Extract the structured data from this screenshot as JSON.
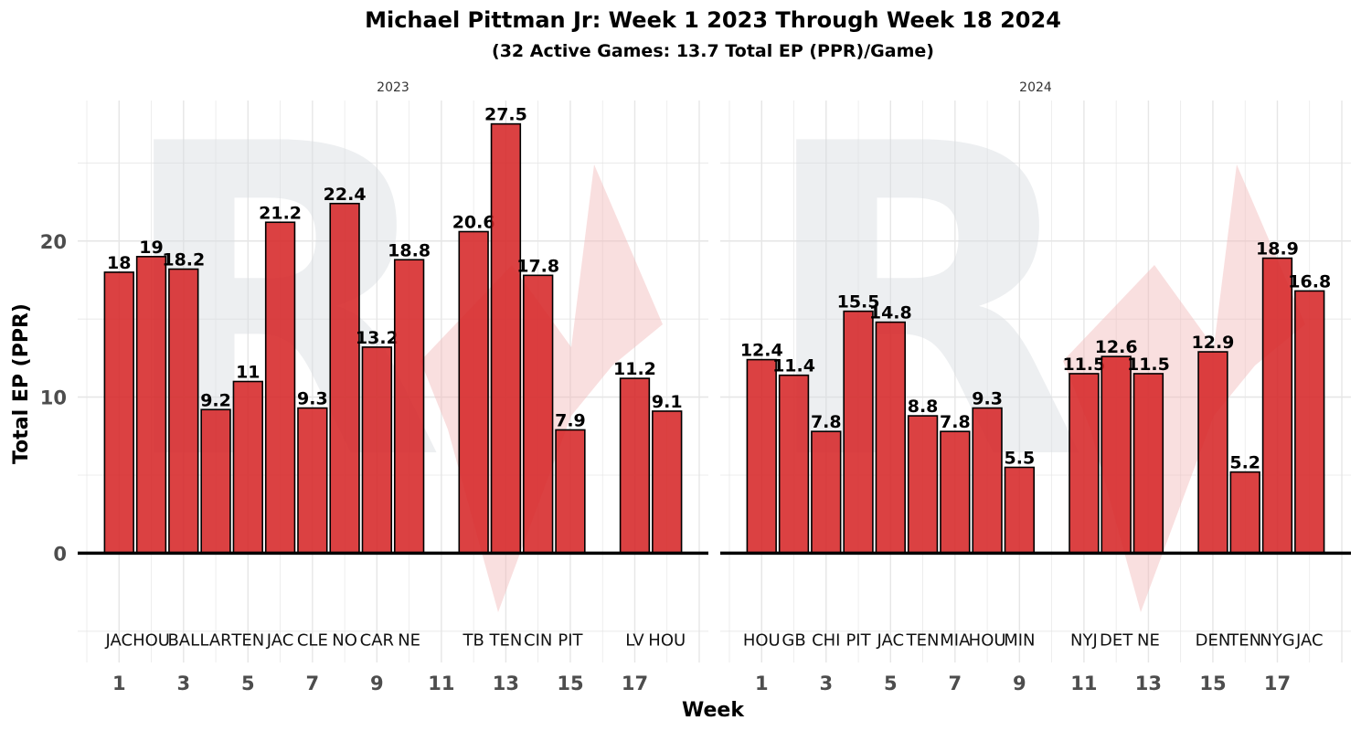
{
  "colors": {
    "bar": "#d62728",
    "bar_stroke": "#000000",
    "grid": "#e6e6e6",
    "watermark_gray": "#d8dbe0",
    "watermark_red": "#f2b8b8"
  },
  "chart_data": {
    "type": "bar",
    "title": "Michael Pittman Jr: Week 1 2023 Through Week 18 2024",
    "subtitle": "(32 Active Games: 13.7 Total EP (PPR)/Game)",
    "xlabel": "Week",
    "ylabel": "Total EP (PPR)",
    "ylim": [
      -7,
      29
    ],
    "xlim": [
      0,
      19
    ],
    "yticks": [
      0,
      10,
      20
    ],
    "xticks": [
      1,
      3,
      5,
      7,
      9,
      11,
      13,
      15,
      17
    ],
    "grid": true,
    "panels": [
      {
        "label": "2023",
        "bars": [
          {
            "week": 1,
            "opp": "JAC",
            "value": 18
          },
          {
            "week": 2,
            "opp": "HOU",
            "value": 19
          },
          {
            "week": 3,
            "opp": "BAL",
            "value": 18.2
          },
          {
            "week": 4,
            "opp": "LAR",
            "value": 9.2
          },
          {
            "week": 5,
            "opp": "TEN",
            "value": 11
          },
          {
            "week": 6,
            "opp": "JAC",
            "value": 21.2
          },
          {
            "week": 7,
            "opp": "CLE",
            "value": 9.3
          },
          {
            "week": 8,
            "opp": "NO",
            "value": 22.4
          },
          {
            "week": 9,
            "opp": "CAR",
            "value": 13.2
          },
          {
            "week": 10,
            "opp": "NE",
            "value": 18.8
          },
          {
            "week": 12,
            "opp": "TB",
            "value": 20.6
          },
          {
            "week": 13,
            "opp": "TEN",
            "value": 27.5
          },
          {
            "week": 14,
            "opp": "CIN",
            "value": 17.8
          },
          {
            "week": 15,
            "opp": "PIT",
            "value": 7.9
          },
          {
            "week": 17,
            "opp": "LV",
            "value": 11.2
          },
          {
            "week": 18,
            "opp": "HOU",
            "value": 9.1
          }
        ]
      },
      {
        "label": "2024",
        "bars": [
          {
            "week": 1,
            "opp": "HOU",
            "value": 12.4
          },
          {
            "week": 2,
            "opp": "GB",
            "value": 11.4
          },
          {
            "week": 3,
            "opp": "CHI",
            "value": 7.8
          },
          {
            "week": 4,
            "opp": "PIT",
            "value": 15.5
          },
          {
            "week": 5,
            "opp": "JAC",
            "value": 14.8
          },
          {
            "week": 6,
            "opp": "TEN",
            "value": 8.8
          },
          {
            "week": 7,
            "opp": "MIA",
            "value": 7.8
          },
          {
            "week": 8,
            "opp": "HOU",
            "value": 9.3
          },
          {
            "week": 9,
            "opp": "MIN",
            "value": 5.5
          },
          {
            "week": 11,
            "opp": "NYJ",
            "value": 11.5
          },
          {
            "week": 12,
            "opp": "DET",
            "value": 12.6
          },
          {
            "week": 13,
            "opp": "NE",
            "value": 11.5
          },
          {
            "week": 15,
            "opp": "DEN",
            "value": 12.9
          },
          {
            "week": 16,
            "opp": "TEN",
            "value": 5.2
          },
          {
            "week": 17,
            "opp": "NYG",
            "value": 18.9
          },
          {
            "week": 18,
            "opp": "JAC",
            "value": 16.8
          }
        ]
      }
    ]
  }
}
